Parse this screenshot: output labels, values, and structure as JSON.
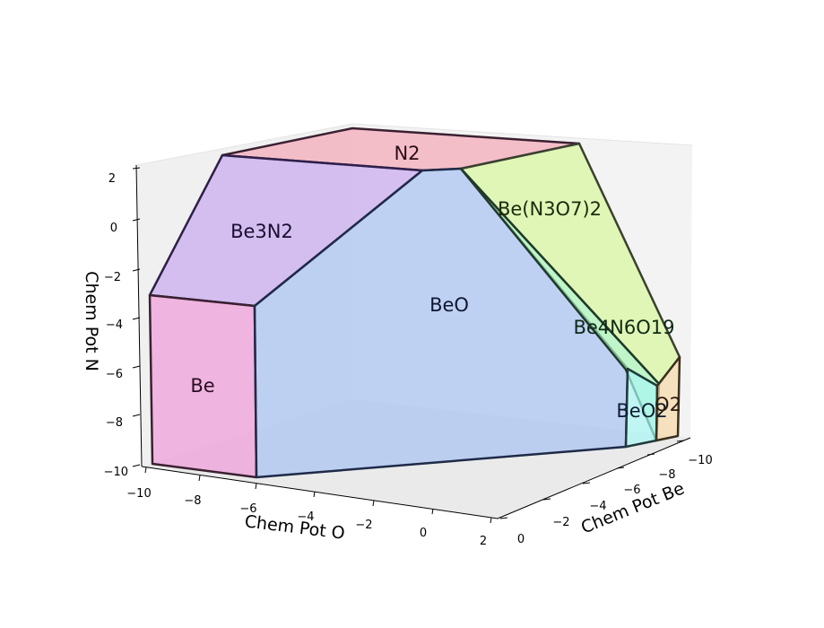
{
  "chart_data": {
    "type": "3d-polyhedra",
    "xlabel": "Chem Pot Be",
    "ylabel": "Chem Pot O",
    "zlabel": "Chem Pot N",
    "x_ticks": [
      "0",
      "−2",
      "−4",
      "−6",
      "−8",
      "−10"
    ],
    "y_ticks": [
      "−10",
      "−8",
      "−6",
      "−4",
      "−2",
      "0",
      "2"
    ],
    "z_ticks": [
      "2",
      "0",
      "−2",
      "−4",
      "−6",
      "−8",
      "−10"
    ],
    "xlim": [
      -10,
      0
    ],
    "ylim": [
      -10,
      2
    ],
    "zlim": [
      -10,
      2
    ],
    "grid": false,
    "regions": [
      {
        "label": "N2",
        "color": "#f4a6b7"
      },
      {
        "label": "Be3N2",
        "color": "#c8a8f0"
      },
      {
        "label": "Be",
        "color": "#ee9ad8"
      },
      {
        "label": "BeO",
        "color": "#a8c2f2"
      },
      {
        "label": "Be(N3O7)2",
        "color": "#d6f79b"
      },
      {
        "label": "Be4N6O19",
        "color": "#a8f5b6"
      },
      {
        "label": "BeO2",
        "color": "#a8f7f2"
      },
      {
        "label": "O2",
        "color": "#f7d9a8"
      }
    ]
  }
}
